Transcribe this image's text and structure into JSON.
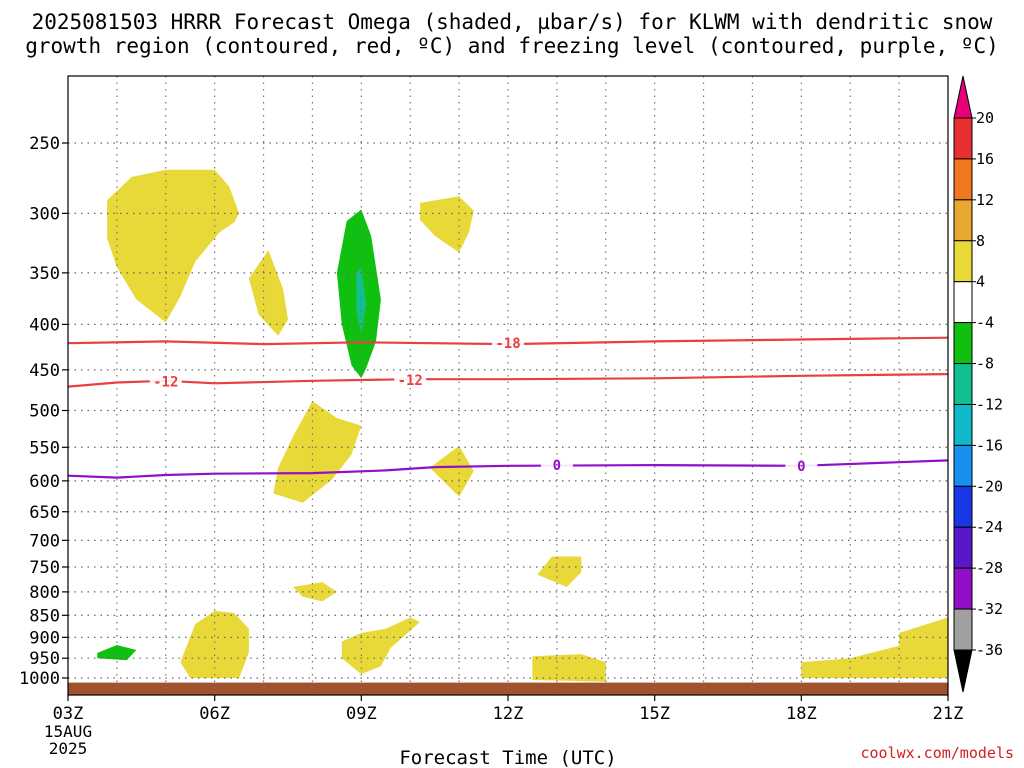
{
  "chart_data": {
    "type": "heatmap",
    "title_line1": "2025081503 HRRR Forecast Omega (shaded, µbar/s) for KLWM with dendritic snow",
    "title_line2": "growth region (contoured, red, ºC) and freezing level (contoured, purple, ºC)",
    "xlabel": "Forecast Time (UTC)",
    "x_ticks": [
      "03Z",
      "06Z",
      "09Z",
      "12Z",
      "15Z",
      "18Z",
      "21Z"
    ],
    "x_start_date": [
      "15AUG",
      "2025"
    ],
    "x_range_hours": [
      3,
      21
    ],
    "y_ticks": [
      250,
      300,
      350,
      400,
      450,
      500,
      550,
      600,
      650,
      700,
      750,
      800,
      850,
      900,
      950,
      1000
    ],
    "y_range_hpa": [
      200,
      1000
    ],
    "grid": true,
    "colorbar": {
      "ticks": [
        "20",
        "16",
        "12",
        "8",
        "4",
        "-4",
        "-8",
        "-12",
        "-16",
        "-20",
        "-24",
        "-28",
        "-32",
        "-36"
      ],
      "colors": [
        "#e8007a",
        "#e83030",
        "#f07820",
        "#e8a830",
        "#e8d838",
        "#ffffff",
        "#10c010",
        "#10c090",
        "#10b8c8",
        "#1890f0",
        "#1838e8",
        "#5818c8",
        "#9010c8",
        "#a0a0a0",
        "#000000"
      ]
    },
    "contours": [
      {
        "label": "-18",
        "color": "#e84040",
        "points": [
          [
            3,
            420
          ],
          [
            5,
            418
          ],
          [
            7,
            421
          ],
          [
            9,
            419
          ],
          [
            12,
            421
          ],
          [
            15,
            418
          ],
          [
            18,
            416
          ],
          [
            21,
            414
          ]
        ]
      },
      {
        "label": "-12",
        "color": "#e84040",
        "points": [
          [
            3,
            470
          ],
          [
            4,
            465
          ],
          [
            5,
            463
          ],
          [
            6,
            466
          ],
          [
            8,
            463
          ],
          [
            10,
            461
          ],
          [
            12,
            461
          ],
          [
            15,
            460
          ],
          [
            18,
            457
          ],
          [
            21,
            455
          ]
        ]
      },
      {
        "label": "0",
        "color": "#9010c8",
        "points": [
          [
            3,
            592
          ],
          [
            4,
            595
          ],
          [
            5,
            591
          ],
          [
            6,
            589
          ],
          [
            8,
            588
          ],
          [
            9.5,
            584
          ],
          [
            10.5,
            579
          ],
          [
            12,
            577
          ],
          [
            15,
            576
          ],
          [
            18,
            577
          ],
          [
            21,
            569
          ]
        ]
      }
    ],
    "contour_labels": [
      {
        "text": "-18",
        "x": 12,
        "y": 420,
        "color": "#e84040"
      },
      {
        "text": "-12",
        "x": 5,
        "y": 464,
        "color": "#e84040"
      },
      {
        "text": "-12",
        "x": 10,
        "y": 462,
        "color": "#e84040"
      },
      {
        "text": "0",
        "x": 13,
        "y": 576,
        "color": "#9010c8"
      },
      {
        "text": "0",
        "x": 18,
        "y": 577,
        "color": "#9010c8"
      }
    ],
    "shaded_regions": [
      {
        "omega_range": "4 to 8",
        "color": "#e8d838",
        "points": [
          [
            3.8,
            290
          ],
          [
            4.3,
            273
          ],
          [
            5,
            268
          ],
          [
            6,
            268
          ],
          [
            6.3,
            280
          ],
          [
            6.5,
            300
          ],
          [
            6.4,
            307
          ],
          [
            6.1,
            315
          ],
          [
            5.6,
            340
          ],
          [
            5.3,
            372
          ],
          [
            5,
            398
          ],
          [
            4.4,
            375
          ],
          [
            4,
            345
          ],
          [
            3.8,
            320
          ]
        ]
      },
      {
        "origin": "yellow",
        "omega_range": "4 to 8",
        "color": "#e8d838",
        "points": [
          [
            7.1,
            330
          ],
          [
            7.4,
            365
          ],
          [
            7.5,
            395
          ],
          [
            7.3,
            412
          ],
          [
            6.9,
            390
          ],
          [
            6.7,
            355
          ]
        ]
      },
      {
        "omega_range": "4 to 8",
        "color": "#e8d838",
        "points": [
          [
            10.2,
            292
          ],
          [
            11,
            287
          ],
          [
            11.3,
            298
          ],
          [
            11.2,
            315
          ],
          [
            11,
            332
          ],
          [
            10.5,
            318
          ],
          [
            10.2,
            305
          ]
        ]
      },
      {
        "omega_range": "-4 to -8",
        "color": "#10c010",
        "points": [
          [
            8.7,
            306
          ],
          [
            9,
            297
          ],
          [
            9.2,
            318
          ],
          [
            9.4,
            375
          ],
          [
            9.3,
            418
          ],
          [
            9.1,
            448
          ],
          [
            9,
            460
          ],
          [
            8.8,
            445
          ],
          [
            8.6,
            400
          ],
          [
            8.5,
            350
          ]
        ]
      },
      {
        "omega_range": "-8 to -12",
        "color": "#10c090",
        "points": [
          [
            8.9,
            350
          ],
          [
            9,
            345
          ],
          [
            9.1,
            380
          ],
          [
            9,
            410
          ],
          [
            8.9,
            385
          ]
        ]
      },
      {
        "omega_range": "4 to 8",
        "color": "#e8d838",
        "points": [
          [
            8,
            488
          ],
          [
            8.5,
            510
          ],
          [
            9,
            520
          ],
          [
            8.8,
            560
          ],
          [
            8.4,
            598
          ],
          [
            7.8,
            635
          ],
          [
            7.2,
            620
          ],
          [
            7.3,
            580
          ],
          [
            7.6,
            535
          ]
        ]
      },
      {
        "omega_range": "4 to 8",
        "color": "#e8d838",
        "points": [
          [
            11,
            548
          ],
          [
            11.3,
            585
          ],
          [
            11,
            625
          ],
          [
            10.4,
            580
          ]
        ]
      },
      {
        "omega_range": "4 to 8",
        "color": "#e8d838",
        "points": [
          [
            12.9,
            730
          ],
          [
            13.5,
            730
          ],
          [
            13.5,
            760
          ],
          [
            13.2,
            790
          ],
          [
            12.6,
            765
          ]
        ]
      },
      {
        "omega_range": "4 to 8",
        "color": "#e8d838",
        "points": [
          [
            7.6,
            790
          ],
          [
            8.2,
            780
          ],
          [
            8.5,
            800
          ],
          [
            8.2,
            820
          ],
          [
            7.8,
            810
          ]
        ]
      },
      {
        "omega_range": "4 to 8",
        "color": "#e8d838",
        "points": [
          [
            5.6,
            870
          ],
          [
            6,
            840
          ],
          [
            6.4,
            845
          ],
          [
            6.7,
            880
          ],
          [
            6.7,
            935
          ],
          [
            6.5,
            1000
          ],
          [
            5.5,
            1000
          ],
          [
            5.3,
            960
          ]
        ]
      },
      {
        "omega_range": "4 to 8",
        "color": "#e8d838",
        "points": [
          [
            8.6,
            910
          ],
          [
            9,
            890
          ],
          [
            9.5,
            880
          ],
          [
            10,
            855
          ],
          [
            10.2,
            865
          ],
          [
            9.6,
            925
          ],
          [
            9.4,
            970
          ],
          [
            9,
            990
          ],
          [
            8.6,
            950
          ]
        ]
      },
      {
        "omega_range": "-4 to -8",
        "color": "#10c010",
        "points": [
          [
            3.6,
            937
          ],
          [
            4,
            918
          ],
          [
            4.4,
            930
          ],
          [
            4.2,
            955
          ],
          [
            3.6,
            950
          ]
        ]
      },
      {
        "omega_range": "4 to 8",
        "color": "#e8d838",
        "points": [
          [
            12.5,
            945
          ],
          [
            13.5,
            940
          ],
          [
            14,
            960
          ],
          [
            14,
            1010
          ],
          [
            12.5,
            1005
          ]
        ]
      },
      {
        "omega_range": "4 to 8",
        "color": "#e8d838",
        "points": [
          [
            18,
            960
          ],
          [
            19,
            950
          ],
          [
            20,
            920
          ],
          [
            20,
            890
          ],
          [
            21,
            855
          ],
          [
            21,
            1000
          ],
          [
            18,
            1000
          ]
        ]
      }
    ],
    "terrain": {
      "color": "#a0522d",
      "from_hpa": 1012
    }
  },
  "credit": "coolwx.com/models"
}
